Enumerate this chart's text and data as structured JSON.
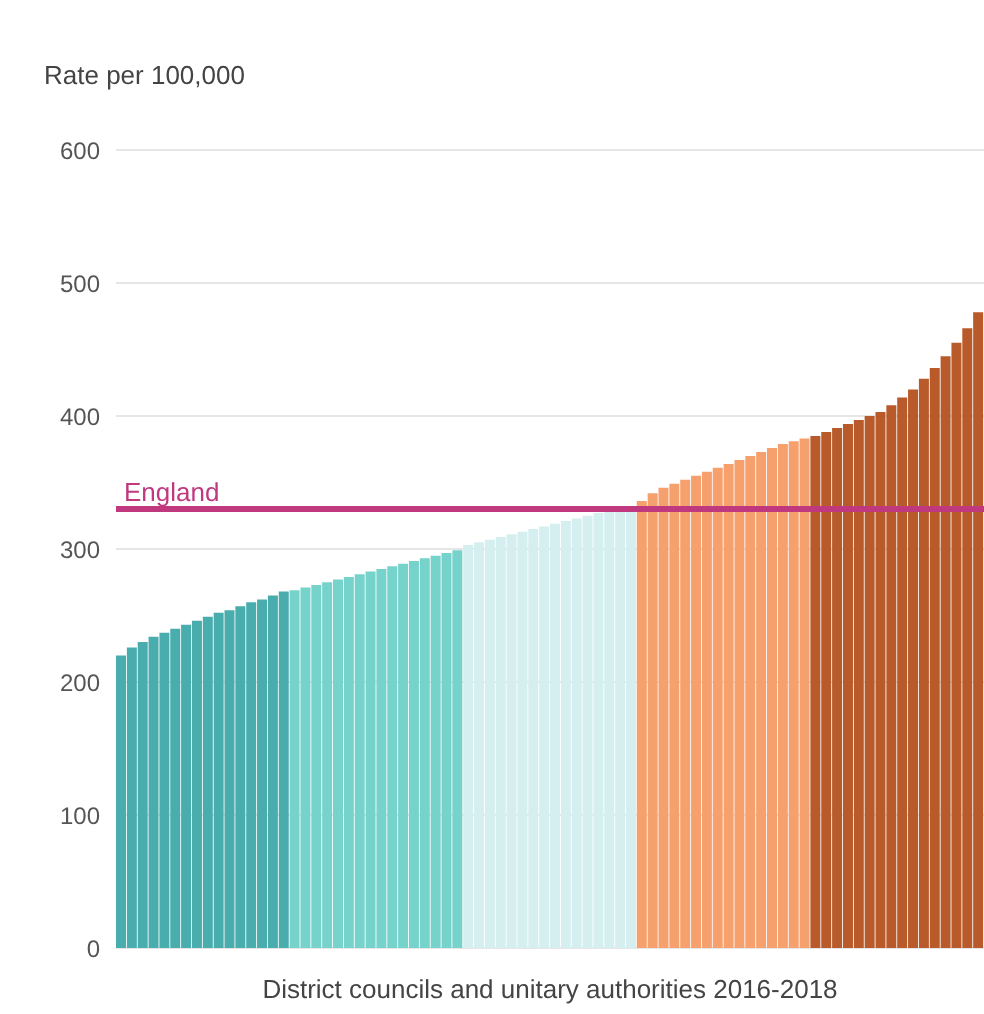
{
  "chart_data": {
    "type": "bar",
    "ylabel": "Rate per 100,000",
    "xlabel": "District councils and unitary authorities 2016-2018",
    "categories": [
      null,
      null,
      null,
      null,
      null,
      null,
      null,
      null,
      null,
      null,
      null,
      null,
      null,
      null,
      null,
      null,
      null,
      null,
      null,
      null,
      null,
      null,
      null,
      null,
      null,
      null,
      null,
      null,
      null,
      null,
      null,
      null,
      null,
      null,
      null,
      null,
      null,
      null,
      null,
      null,
      null,
      null,
      null,
      null,
      null,
      null,
      null,
      null,
      null,
      null,
      null,
      null,
      null,
      null,
      null,
      null,
      null,
      null,
      null,
      null,
      null,
      null,
      null,
      null,
      null,
      null,
      null,
      null,
      null,
      null,
      null,
      null,
      null,
      null,
      null,
      null,
      null,
      null,
      null,
      null
    ],
    "values": [
      220,
      226,
      230,
      234,
      237,
      240,
      243,
      246,
      249,
      252,
      254,
      257,
      260,
      262,
      265,
      268,
      269,
      271,
      273,
      275,
      277,
      279,
      281,
      283,
      285,
      287,
      289,
      291,
      293,
      295,
      297,
      299,
      303,
      305,
      307,
      309,
      311,
      313,
      315,
      317,
      319,
      321,
      323,
      325,
      327,
      328,
      330,
      332,
      336,
      342,
      346,
      349,
      352,
      355,
      358,
      361,
      364,
      367,
      370,
      373,
      376,
      379,
      381,
      383,
      385,
      388,
      391,
      394,
      397,
      400,
      403,
      408,
      414,
      420,
      428,
      436,
      445,
      455,
      466,
      478
    ],
    "colors": [
      "#4aadad",
      "#4aadad",
      "#4aadad",
      "#4aadad",
      "#4aadad",
      "#4aadad",
      "#4aadad",
      "#4aadad",
      "#4aadad",
      "#4aadad",
      "#4aadad",
      "#4aadad",
      "#4aadad",
      "#4aadad",
      "#4aadad",
      "#4aadad",
      "#76d3cb",
      "#76d3cb",
      "#76d3cb",
      "#76d3cb",
      "#76d3cb",
      "#76d3cb",
      "#76d3cb",
      "#76d3cb",
      "#76d3cb",
      "#76d3cb",
      "#76d3cb",
      "#76d3cb",
      "#76d3cb",
      "#76d3cb",
      "#76d3cb",
      "#76d3cb",
      "#d5eff0",
      "#d5eff0",
      "#d5eff0",
      "#d5eff0",
      "#d5eff0",
      "#d5eff0",
      "#d5eff0",
      "#d5eff0",
      "#d5eff0",
      "#d5eff0",
      "#d5eff0",
      "#d5eff0",
      "#d5eff0",
      "#d5eff0",
      "#d5eff0",
      "#d5eff0",
      "#f6a06d",
      "#f6a06d",
      "#f6a06d",
      "#f6a06d",
      "#f6a06d",
      "#f6a06d",
      "#f6a06d",
      "#f6a06d",
      "#f6a06d",
      "#f6a06d",
      "#f6a06d",
      "#f6a06d",
      "#f6a06d",
      "#f6a06d",
      "#f6a06d",
      "#f6a06d",
      "#b85a29",
      "#b85a29",
      "#b85a29",
      "#b85a29",
      "#b85a29",
      "#b85a29",
      "#b85a29",
      "#b85a29",
      "#b85a29",
      "#b85a29",
      "#b85a29",
      "#b85a29",
      "#b85a29",
      "#b85a29",
      "#b85a29",
      "#b85a29"
    ],
    "ylim": [
      0,
      600
    ],
    "yticks": [
      0,
      100,
      200,
      300,
      400,
      500,
      600
    ],
    "grid": "y",
    "tick_labels": "y",
    "legend": false,
    "ref_lines": [
      {
        "axis": "y",
        "value": 330,
        "label": "England",
        "color": "#c0397f"
      }
    ]
  }
}
